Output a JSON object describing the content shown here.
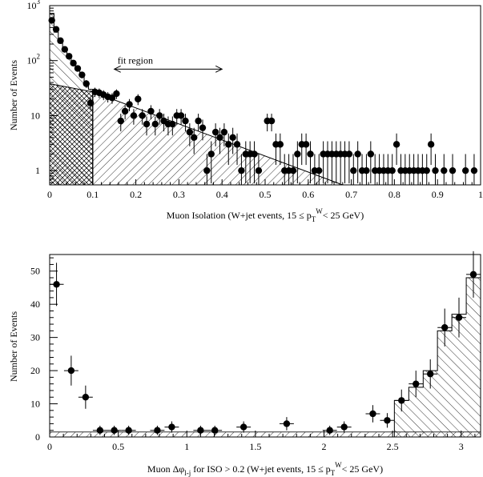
{
  "colors": {
    "background": "#ffffff",
    "ink": "#000000"
  },
  "chart_data": [
    {
      "type": "scatter",
      "xlabel_parts": [
        "Muon Isolation (W+jet events, 15 ≤ p",
        "T",
        "W",
        "< 25 GeV)"
      ],
      "ylabel": "Number of Events",
      "xlim": [
        0,
        1.0
      ],
      "ylim": [
        0.55,
        1000
      ],
      "yscale": "log",
      "x_ticks": [
        "0",
        "0.1",
        "0.2",
        "0.3",
        "0.4",
        "0.5",
        "0.6",
        "0.7",
        "0.8",
        "0.9",
        "1"
      ],
      "y_ticks": [
        {
          "value": 1,
          "base": "1",
          "exp": ""
        },
        {
          "value": 10,
          "base": "10",
          "exp": ""
        },
        {
          "value": 100,
          "base": "10",
          "exp": "2"
        },
        {
          "value": 1000,
          "base": "10",
          "exp": "3"
        }
      ],
      "annotation": {
        "text": "fit region",
        "x_from": 0.15,
        "x_to": 0.4,
        "y": 70
      },
      "points": [
        [
          0.005,
          540
        ],
        [
          0.015,
          370
        ],
        [
          0.025,
          230
        ],
        [
          0.035,
          160
        ],
        [
          0.045,
          120
        ],
        [
          0.055,
          90
        ],
        [
          0.065,
          72
        ],
        [
          0.075,
          55
        ],
        [
          0.085,
          38
        ],
        [
          0.095,
          17
        ],
        [
          0.105,
          27
        ],
        [
          0.115,
          26
        ],
        [
          0.125,
          24
        ],
        [
          0.135,
          22
        ],
        [
          0.145,
          21
        ],
        [
          0.155,
          25
        ],
        [
          0.165,
          8
        ],
        [
          0.175,
          12
        ],
        [
          0.185,
          16
        ],
        [
          0.195,
          10
        ],
        [
          0.205,
          20
        ],
        [
          0.215,
          10
        ],
        [
          0.225,
          7
        ],
        [
          0.235,
          12
        ],
        [
          0.245,
          7
        ],
        [
          0.255,
          10
        ],
        [
          0.265,
          8
        ],
        [
          0.275,
          7
        ],
        [
          0.285,
          7
        ],
        [
          0.295,
          10
        ],
        [
          0.305,
          10
        ],
        [
          0.315,
          8
        ],
        [
          0.325,
          5
        ],
        [
          0.335,
          4
        ],
        [
          0.345,
          8
        ],
        [
          0.355,
          6
        ],
        [
          0.365,
          1
        ],
        [
          0.375,
          2
        ],
        [
          0.385,
          5
        ],
        [
          0.395,
          4
        ],
        [
          0.405,
          5
        ],
        [
          0.415,
          3
        ],
        [
          0.425,
          4
        ],
        [
          0.435,
          3
        ],
        [
          0.445,
          1
        ],
        [
          0.455,
          2
        ],
        [
          0.465,
          2
        ],
        [
          0.475,
          2
        ],
        [
          0.485,
          1
        ],
        [
          0.505,
          8
        ],
        [
          0.515,
          8
        ],
        [
          0.525,
          3
        ],
        [
          0.535,
          3
        ],
        [
          0.545,
          1
        ],
        [
          0.555,
          1
        ],
        [
          0.565,
          1
        ],
        [
          0.575,
          2
        ],
        [
          0.585,
          3
        ],
        [
          0.595,
          3
        ],
        [
          0.605,
          2
        ],
        [
          0.615,
          1
        ],
        [
          0.625,
          1
        ],
        [
          0.635,
          2
        ],
        [
          0.645,
          2
        ],
        [
          0.655,
          2
        ],
        [
          0.665,
          2
        ],
        [
          0.675,
          2
        ],
        [
          0.685,
          2
        ],
        [
          0.695,
          2
        ],
        [
          0.705,
          1
        ],
        [
          0.715,
          2
        ],
        [
          0.725,
          1
        ],
        [
          0.735,
          1
        ],
        [
          0.745,
          2
        ],
        [
          0.755,
          1
        ],
        [
          0.765,
          1
        ],
        [
          0.775,
          1
        ],
        [
          0.785,
          1
        ],
        [
          0.795,
          1
        ],
        [
          0.805,
          3
        ],
        [
          0.815,
          1
        ],
        [
          0.825,
          1
        ],
        [
          0.835,
          1
        ],
        [
          0.845,
          1
        ],
        [
          0.855,
          1
        ],
        [
          0.865,
          1
        ],
        [
          0.875,
          1
        ],
        [
          0.885,
          3
        ],
        [
          0.895,
          1
        ],
        [
          0.915,
          1
        ],
        [
          0.935,
          1
        ],
        [
          0.965,
          1
        ],
        [
          0.985,
          1
        ]
      ],
      "fill_regions": [
        {
          "pattern": "cross-hatch",
          "x_from": 0.0,
          "x_to": 0.1,
          "y_from": 0.55,
          "y_start": 38,
          "y_end": 27
        },
        {
          "pattern": "diagonal",
          "x_from": 0.1,
          "x_to": 0.68,
          "y_from": 0.55,
          "y_start": 27,
          "y_end": 0.55
        }
      ],
      "histogram_nonisolated": [
        [
          0.0,
          0.01,
          720
        ],
        [
          0.01,
          0.02,
          330
        ],
        [
          0.02,
          0.03,
          210
        ],
        [
          0.03,
          0.04,
          150
        ],
        [
          0.04,
          0.05,
          110
        ],
        [
          0.05,
          0.06,
          85
        ],
        [
          0.06,
          0.07,
          68
        ],
        [
          0.07,
          0.08,
          52
        ],
        [
          0.08,
          0.09,
          40
        ],
        [
          0.09,
          0.1,
          30
        ]
      ]
    },
    {
      "type": "scatter",
      "xlabel_parts": [
        "Muon Δφ",
        "l-j",
        " for ISO > 0.2 (W+jet events, 15 ≤ p",
        "T",
        "W",
        "< 25 GeV)"
      ],
      "ylabel": "Number of Events",
      "xlim": [
        0,
        3.1416
      ],
      "ylim": [
        0,
        55
      ],
      "x_ticks": [
        "0",
        "0.5",
        "1",
        "1.5",
        "2",
        "2.5",
        "3"
      ],
      "y_ticks": [
        "0",
        "10",
        "20",
        "30",
        "40",
        "50"
      ],
      "points": [
        [
          0.05,
          46,
          6.5
        ],
        [
          0.157,
          20,
          4.5
        ],
        [
          0.262,
          12,
          3.5
        ],
        [
          0.367,
          2,
          1.4
        ],
        [
          0.471,
          2,
          1.4
        ],
        [
          0.576,
          2,
          1.4
        ],
        [
          0.785,
          2,
          1.4
        ],
        [
          0.89,
          3,
          1.7
        ],
        [
          1.1,
          2,
          1.4
        ],
        [
          1.204,
          2,
          1.4
        ],
        [
          1.414,
          3,
          1.7
        ],
        [
          1.728,
          4,
          2.0
        ],
        [
          2.042,
          2,
          1.4
        ],
        [
          2.147,
          3,
          1.7
        ],
        [
          2.356,
          7,
          2.6
        ],
        [
          2.461,
          5,
          2.2
        ],
        [
          2.565,
          11,
          3.3
        ],
        [
          2.67,
          16,
          4.0
        ],
        [
          2.775,
          19,
          4.4
        ],
        [
          2.88,
          33,
          5.7
        ],
        [
          2.984,
          36,
          6.0
        ],
        [
          3.089,
          49,
          7.0
        ]
      ],
      "histogram": [
        [
          2.513,
          2.618,
          11
        ],
        [
          2.618,
          2.723,
          15
        ],
        [
          2.723,
          2.827,
          20
        ],
        [
          2.827,
          2.932,
          32
        ],
        [
          2.932,
          3.037,
          37
        ],
        [
          3.037,
          3.1416,
          48
        ]
      ],
      "baseline_band": 1.5
    }
  ]
}
